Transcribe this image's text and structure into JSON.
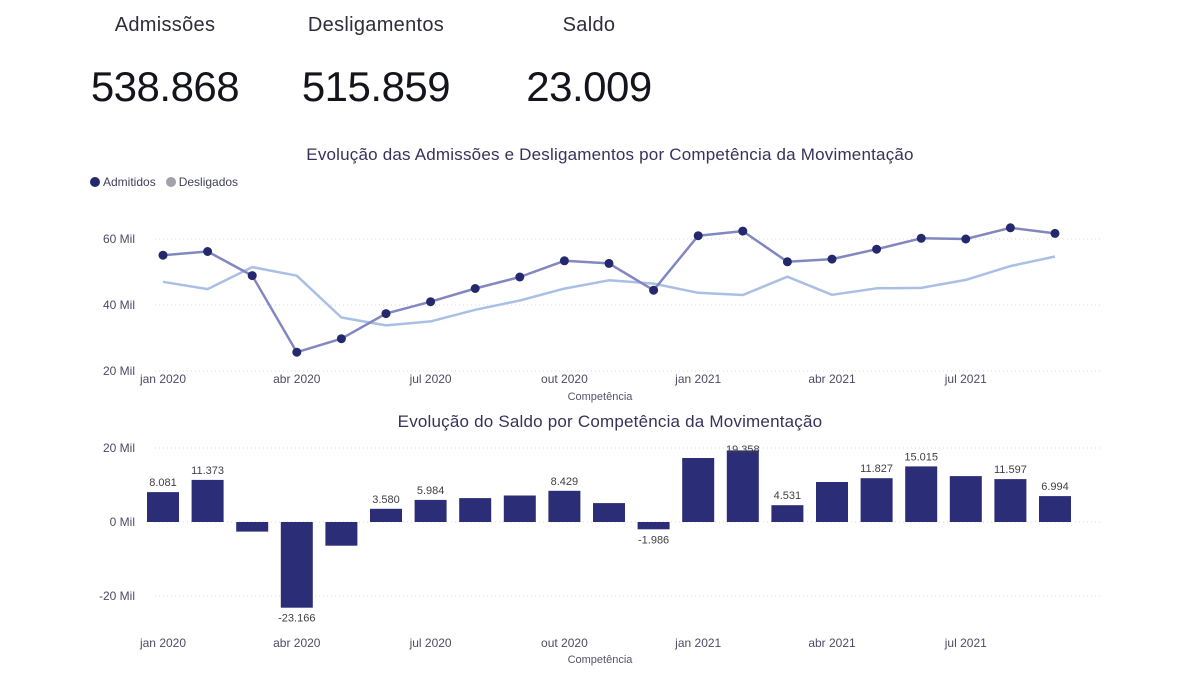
{
  "kpis": [
    {
      "label": "Admissões",
      "value": "538.868"
    },
    {
      "label": "Desligamentos",
      "value": "515.859"
    },
    {
      "label": "Saldo",
      "value": "23.009"
    }
  ],
  "colors": {
    "admitidos_marker": "#24296e",
    "admitidos_line": "#8287bf",
    "desligados_line": "#a9c0e4",
    "desligados_legend_dot": "#a2a2a8",
    "bar_fill": "#2b2e76",
    "gridline": "#d9d9d9",
    "tick_text": "#4d4b66",
    "bar_label_text": "#3f3f46"
  },
  "chart_data": [
    {
      "type": "line",
      "title": "Evolução das Admissões e Desligamentos por Competência da Movimentação",
      "xlabel": "Competência",
      "ylabel": "",
      "x": [
        "jan 2020",
        "fev 2020",
        "mar 2020",
        "abr 2020",
        "mai 2020",
        "jun 2020",
        "jul 2020",
        "ago 2020",
        "set 2020",
        "out 2020",
        "nov 2020",
        "dez 2020",
        "jan 2021",
        "fev 2021",
        "mar 2021",
        "abr 2021",
        "mai 2021",
        "jun 2021",
        "jul 2021",
        "ago 2021",
        "set 2021"
      ],
      "x_tick_labels": [
        "jan 2020",
        "abr 2020",
        "jul 2020",
        "out 2020",
        "jan 2021",
        "abr 2021",
        "jul 2021"
      ],
      "x_tick_indices": [
        0,
        3,
        6,
        9,
        12,
        15,
        18
      ],
      "y_ticks": [
        {
          "value": 20000,
          "label": "20 Mil"
        },
        {
          "value": 40000,
          "label": "40 Mil"
        },
        {
          "value": 60000,
          "label": "60 Mil"
        }
      ],
      "ylim": [
        15000,
        70000
      ],
      "grid": "dotted-horizontal",
      "legend_position": "top-left",
      "series": [
        {
          "name": "Admitidos",
          "markers": true,
          "values": [
            55100,
            56200,
            48900,
            25700,
            29800,
            37400,
            41000,
            45000,
            48500,
            53400,
            52600,
            44500,
            61000,
            62400,
            53100,
            53900,
            56900,
            60200,
            60000,
            63400,
            61700
          ]
        },
        {
          "name": "Desligados",
          "markers": false,
          "values": [
            47019,
            44827,
            51500,
            48866,
            36200,
            33820,
            35016,
            38550,
            41350,
            44971,
            47500,
            46486,
            43700,
            43042,
            48569,
            43100,
            45073,
            45185,
            47600,
            51803,
            54706
          ]
        }
      ]
    },
    {
      "type": "bar",
      "title": "Evolução do Saldo por Competência da Movimentação",
      "xlabel": "Competência",
      "ylabel": "",
      "categories": [
        "jan 2020",
        "fev 2020",
        "mar 2020",
        "abr 2020",
        "mai 2020",
        "jun 2020",
        "jul 2020",
        "ago 2020",
        "set 2020",
        "out 2020",
        "nov 2020",
        "dez 2020",
        "jan 2021",
        "fev 2021",
        "mar 2021",
        "abr 2021",
        "mai 2021",
        "jun 2021",
        "jul 2021",
        "ago 2021",
        "set 2021"
      ],
      "x_tick_labels": [
        "jan 2020",
        "abr 2020",
        "jul 2020",
        "out 2020",
        "jan 2021",
        "abr 2021",
        "jul 2021"
      ],
      "x_tick_indices": [
        0,
        3,
        6,
        9,
        12,
        15,
        18
      ],
      "y_ticks": [
        {
          "value": 20000,
          "label": "20 Mil"
        },
        {
          "value": 0,
          "label": "0 Mil"
        },
        {
          "value": -20000,
          "label": "-20 Mil"
        }
      ],
      "ylim": [
        -27000,
        21000
      ],
      "grid": "dotted-horizontal",
      "values": [
        8081,
        11373,
        -2600,
        -23166,
        -6400,
        3580,
        5984,
        6450,
        7150,
        8429,
        5100,
        -1986,
        17300,
        19358,
        4531,
        10800,
        11827,
        15015,
        12400,
        11597,
        6994
      ],
      "data_labels": [
        "8.081",
        "11.373",
        "",
        "-23.166",
        "",
        "3.580",
        "5.984",
        "",
        "",
        "8.429",
        "",
        "-1.986",
        "",
        "19.358",
        "4.531",
        "",
        "11.827",
        "15.015",
        "",
        "11.597",
        "6.994"
      ]
    }
  ]
}
